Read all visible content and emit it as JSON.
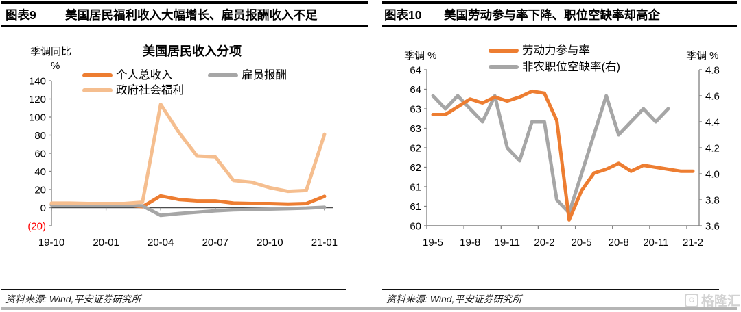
{
  "panels": [
    {
      "header": {
        "tag": "图表9",
        "title": "美国居民福利收入大幅增长、雇员报酬收入不足"
      },
      "source": "资料来源: Wind,平安证券研究所"
    },
    {
      "header": {
        "tag": "图表10",
        "title": "美国劳动参与率下降、职位空缺率却高企"
      },
      "source": "资料来源: Wind,平安证券研究所"
    }
  ],
  "watermark": {
    "letter": "G",
    "text": "格隆汇"
  },
  "chart_data": [
    {
      "type": "line",
      "title": "美国居民收入分项",
      "y_label_1": "季调同比",
      "y_label_2": "%",
      "x": [
        "19-10",
        "19-11",
        "19-12",
        "20-01",
        "20-02",
        "20-03",
        "20-04",
        "20-05",
        "20-06",
        "20-07",
        "20-08",
        "20-09",
        "20-10",
        "20-11",
        "20-12",
        "21-01"
      ],
      "x_tick_labels": [
        "19-10",
        "20-01",
        "20-04",
        "20-07",
        "20-10",
        "21-01"
      ],
      "ylim": [
        -20,
        140
      ],
      "y_ticks": [
        140,
        120,
        100,
        80,
        60,
        40,
        20,
        0,
        -20
      ],
      "y_tick_labels": [
        "140",
        "120",
        "100",
        "80",
        "60",
        "40",
        "20",
        "0",
        "(20)"
      ],
      "negative_tick_color": "#ff0000",
      "legend_position": "top",
      "grid": false,
      "series": [
        {
          "name": "个人总收入",
          "color": "#ED7D31",
          "axis": "left",
          "values": [
            4,
            3.5,
            3,
            3.5,
            3.5,
            1,
            13,
            9,
            7.5,
            7.5,
            5,
            4.5,
            4.5,
            4,
            4.5,
            12.5
          ]
        },
        {
          "name": "雇员报酬",
          "color": "#A6A6A6",
          "axis": "left",
          "values": [
            3,
            3,
            2.8,
            2.8,
            2.8,
            2,
            -8.5,
            -6.5,
            -5,
            -3.5,
            -2.5,
            -2,
            -1.5,
            -1,
            -0.5,
            0.5
          ]
        },
        {
          "name": "政府社会福利",
          "color": "#F5BE8F",
          "axis": "left",
          "values": [
            5,
            5,
            4.5,
            4.5,
            4.5,
            6,
            114,
            83,
            57,
            56,
            30,
            28,
            22,
            18,
            19,
            81
          ]
        }
      ]
    },
    {
      "type": "line",
      "y_label_left": "季调 %",
      "y_label_right": "季调 %",
      "x": [
        "19-5",
        "19-6",
        "19-7",
        "19-8",
        "19-9",
        "19-10",
        "19-11",
        "19-12",
        "20-1",
        "20-2",
        "20-3",
        "20-4",
        "20-5",
        "20-6",
        "20-7",
        "20-8",
        "20-9",
        "20-10",
        "20-11",
        "20-12",
        "21-1",
        "21-2"
      ],
      "x_tick_labels": [
        "19-5",
        "19-8",
        "19-11",
        "20-2",
        "20-5",
        "20-8",
        "20-11",
        "21-2"
      ],
      "ylim_left": [
        60,
        64
      ],
      "y_ticks": [
        64,
        63.5,
        63,
        62.5,
        62,
        61.5,
        61,
        60.5,
        60
      ],
      "y_tick_labels": [
        "64",
        "64",
        "63",
        "63",
        "62",
        "62",
        "61",
        "61",
        "60"
      ],
      "ylim_right": [
        3.6,
        4.8
      ],
      "y_ticks_right": [
        4.8,
        4.6,
        4.4,
        4.2,
        4.0,
        3.8,
        3.6
      ],
      "y_tick_labels_right": [
        "4.8",
        "4.6",
        "4.4",
        "4.2",
        "4.0",
        "3.8",
        "3.6"
      ],
      "legend_position": "top",
      "grid": false,
      "series": [
        {
          "name": "劳动力参与率",
          "color": "#ED7D31",
          "axis": "left",
          "values": [
            62.85,
            62.85,
            63.05,
            63.25,
            63.15,
            63.3,
            63.2,
            63.3,
            63.45,
            63.4,
            62.7,
            60.15,
            60.9,
            61.35,
            61.45,
            61.6,
            61.4,
            61.55,
            61.5,
            61.45,
            61.4,
            61.4
          ]
        },
        {
          "name": "非农职位空缺率(右)",
          "color": "#A6A6A6",
          "axis": "right",
          "values": [
            4.6,
            4.5,
            4.6,
            4.5,
            4.4,
            4.6,
            4.2,
            4.1,
            4.4,
            4.4,
            3.8,
            3.7,
            4.0,
            4.3,
            4.6,
            4.3,
            4.4,
            4.5,
            4.4,
            4.5,
            null,
            null
          ]
        }
      ]
    }
  ]
}
